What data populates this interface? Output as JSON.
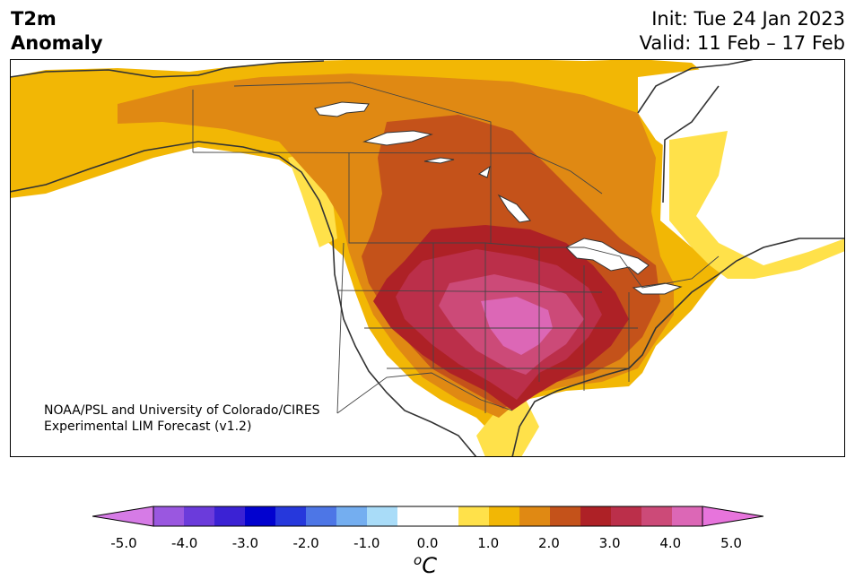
{
  "title": {
    "variable": "T2m",
    "quantity": "Anomaly"
  },
  "init": "Init: Tue 24 Jan 2023",
  "valid": "Valid: 11 Feb – 17 Feb",
  "credit": {
    "line1": "NOAA/PSL and University of Colorado/CIRES",
    "line2": "Experimental LIM Forecast (v1.2)"
  },
  "colorbar": {
    "unit_base": "C",
    "unit_sup": "o",
    "colors": [
      "#d67be6",
      "#9a57e0",
      "#6b3bdb",
      "#3b22d4",
      "#0202cf",
      "#2638dc",
      "#4d76e6",
      "#74aef0",
      "#a9dcf8",
      "#ffffff",
      "#ffffff",
      "#ffe14a",
      "#f2b705",
      "#e08913",
      "#c4521a",
      "#ae2126",
      "#bb2f4a",
      "#cc4a78",
      "#dc67b6",
      "#e774dc"
    ],
    "ticks": [
      "-5.0",
      "-4.0",
      "-3.0",
      "-2.0",
      "-1.0",
      "0.0",
      "1.0",
      "2.0",
      "3.0",
      "4.0",
      "5.0"
    ]
  },
  "anomaly_colors": {
    "light_yellow": "#ffe14a",
    "gold": "#f2b705",
    "orange": "#e08913",
    "dark_orange": "#c4521a",
    "red": "#ae2126",
    "crimson": "#bb2f4a",
    "pink": "#cc4a78",
    "hot_pink": "#dc67b6"
  }
}
